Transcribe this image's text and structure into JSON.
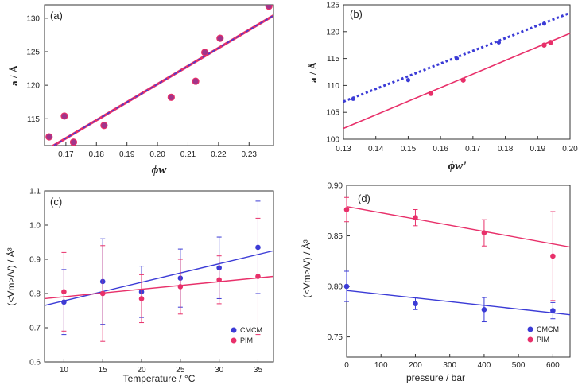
{
  "colors": {
    "pink": "#e8306a",
    "blue": "#3b3bd6",
    "purple": "#9a3aa6",
    "marker_a": "#a2348a",
    "frame": "#333333"
  },
  "chart_data": [
    {
      "panel": "(a)",
      "type": "scatter",
      "xlabel": "ϕw",
      "ylabel": "a / Å",
      "xlim": [
        0.163,
        0.238
      ],
      "ylim": [
        111,
        132
      ],
      "xticks": [
        0.17,
        0.18,
        0.19,
        0.2,
        0.21,
        0.22,
        0.23
      ],
      "xtick_labels": [
        "0.17",
        "0.18",
        "0.19",
        "0.20",
        "0.21",
        "0.22",
        "0.23"
      ],
      "yticks": [
        115,
        120,
        125,
        130
      ],
      "ytick_labels": [
        "115",
        "120",
        "125",
        "130"
      ],
      "series": [
        {
          "name": "data",
          "x": [
            0.1645,
            0.1695,
            0.1725,
            0.1825,
            0.2045,
            0.2125,
            0.2155,
            0.2205,
            0.2365
          ],
          "y": [
            112.3,
            115.4,
            111.5,
            114.0,
            118.2,
            120.6,
            124.9,
            127.0,
            131.8
          ]
        },
        {
          "name": "fit",
          "line": [
            [
              0.163,
              110.2
            ],
            [
              0.238,
              130.4
            ]
          ]
        }
      ]
    },
    {
      "panel": "(b)",
      "type": "scatter",
      "xlabel": "ϕw'",
      "ylabel": "a / Å",
      "xlim": [
        0.13,
        0.2
      ],
      "ylim": [
        100,
        125
      ],
      "xticks": [
        0.13,
        0.14,
        0.15,
        0.16,
        0.17,
        0.18,
        0.19,
        0.2
      ],
      "xtick_labels": [
        "0.13",
        "0.14",
        "0.15",
        "0.16",
        "0.17",
        "0.18",
        "0.19",
        "0.20"
      ],
      "yticks": [
        100,
        105,
        110,
        115,
        120,
        125
      ],
      "ytick_labels": [
        "100",
        "105",
        "110",
        "115",
        "120",
        "125"
      ],
      "series": [
        {
          "name": "dashed",
          "x": [
            0.133,
            0.15,
            0.165,
            0.178,
            0.192
          ],
          "y": [
            107.5,
            111.0,
            115.0,
            118.0,
            121.5
          ],
          "line": [
            [
              0.13,
              107.0
            ],
            [
              0.2,
              123.5
            ]
          ]
        },
        {
          "name": "solid",
          "x": [
            0.157,
            0.167,
            0.192,
            0.194
          ],
          "y": [
            108.5,
            111.0,
            117.5,
            118.0
          ],
          "line": [
            [
              0.13,
              102.0
            ],
            [
              0.2,
              119.7
            ]
          ]
        }
      ]
    },
    {
      "panel": "(c)",
      "type": "scatter",
      "xlabel": "Temperature / °C",
      "ylabel": "(<Vm>/V) / Å³",
      "xlim": [
        7.5,
        37.0
      ],
      "ylim": [
        0.6,
        1.1
      ],
      "xticks": [
        10,
        15,
        20,
        25,
        30,
        35
      ],
      "xtick_labels": [
        "10",
        "15",
        "20",
        "25",
        "30",
        "35"
      ],
      "yticks": [
        0.6,
        0.7,
        0.8,
        0.9,
        1.0,
        1.1
      ],
      "ytick_labels": [
        "0.6",
        "0.7",
        "0.8",
        "0.9",
        "1.0",
        "1.1"
      ],
      "legend": [
        "CMCM",
        "PIM"
      ],
      "series": [
        {
          "name": "CMCM",
          "x": [
            10,
            15,
            20,
            25,
            30,
            35
          ],
          "y": [
            0.775,
            0.835,
            0.805,
            0.845,
            0.875,
            0.935
          ],
          "err": [
            0.095,
            0.125,
            0.075,
            0.085,
            0.09,
            0.135
          ],
          "line": [
            [
              7.5,
              0.765
            ],
            [
              37.0,
              0.925
            ]
          ]
        },
        {
          "name": "PIM",
          "x": [
            10,
            15,
            20,
            25,
            30,
            35
          ],
          "y": [
            0.805,
            0.8,
            0.785,
            0.82,
            0.84,
            0.85
          ],
          "err": [
            0.115,
            0.14,
            0.07,
            0.08,
            0.07,
            0.17
          ],
          "line": [
            [
              7.5,
              0.785
            ],
            [
              37.0,
              0.85
            ]
          ]
        }
      ]
    },
    {
      "panel": "(d)",
      "type": "scatter",
      "xlabel": "pressure / bar",
      "ylabel": "(<Vm>/V) / Å³",
      "xlim": [
        0,
        650
      ],
      "ylim": [
        0.73,
        0.9
      ],
      "xticks": [
        0,
        100,
        200,
        300,
        400,
        500,
        600
      ],
      "xtick_labels": [
        "0",
        "100",
        "200",
        "300",
        "400",
        "500",
        "600"
      ],
      "yticks": [
        0.75,
        0.8,
        0.85,
        0.9
      ],
      "ytick_labels": [
        "0.75",
        "0.80",
        "0.85",
        "0.90"
      ],
      "legend": [
        "CMCM",
        "PIM"
      ],
      "series": [
        {
          "name": "CMCM",
          "x": [
            0,
            200,
            400,
            600
          ],
          "y": [
            0.8,
            0.783,
            0.777,
            0.776
          ],
          "err": [
            0.015,
            0.006,
            0.012,
            0.008
          ],
          "line": [
            [
              0,
              0.796
            ],
            [
              650,
              0.772
            ]
          ]
        },
        {
          "name": "PIM",
          "x": [
            0,
            200,
            400,
            600
          ],
          "y": [
            0.876,
            0.868,
            0.853,
            0.83
          ],
          "err": [
            0.012,
            0.008,
            0.013,
            0.044
          ],
          "line": [
            [
              0,
              0.879
            ],
            [
              650,
              0.839
            ]
          ]
        }
      ]
    }
  ]
}
